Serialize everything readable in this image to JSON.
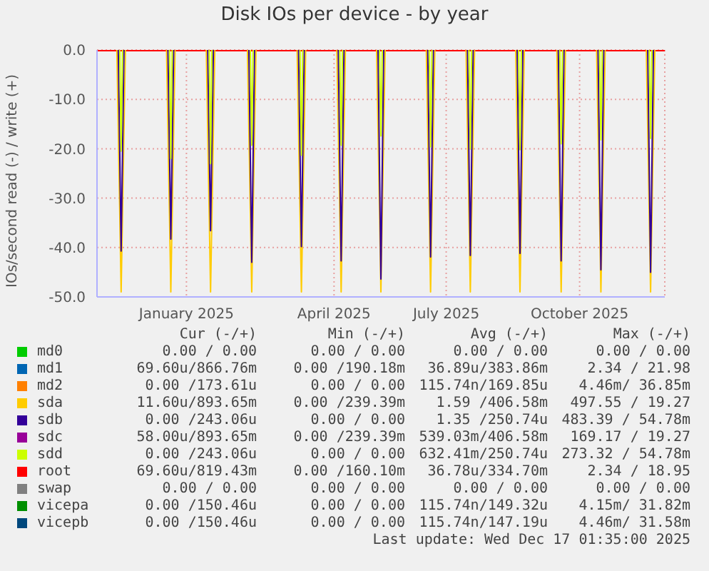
{
  "chart_data": {
    "type": "line",
    "title": "Disk IOs per device - by year",
    "ylabel": "IOs/second read (-) / write (+)",
    "x": [
      "2024-11-12",
      "2025-12-17"
    ],
    "series": [
      {
        "name": "md0",
        "color": "#00cc00",
        "values": [
          null,
          null
        ]
      },
      {
        "name": "md1",
        "color": "#0066b3",
        "values": [
          null,
          null
        ]
      },
      {
        "name": "md2",
        "color": "#ff8000",
        "values": [
          null,
          null
        ]
      },
      {
        "name": "sda",
        "color": "#ffcc00",
        "x": [
          "2024-11-26",
          "2024-11-29",
          "2024-12-02",
          "2024-12-03",
          "2024-12-31",
          "2025-01-03",
          "2025-01-06",
          "2025-01-07",
          "2025-01-28",
          "2025-01-31",
          "2025-02-03",
          "2025-02-04",
          "2025-02-26",
          "2025-03-01",
          "2025-03-04",
          "2025-03-05",
          "2025-04-02",
          "2025-04-05",
          "2025-04-08",
          "2025-04-09",
          "2025-04-30",
          "2025-05-03",
          "2025-05-06",
          "2025-05-07",
          "2025-05-28",
          "2025-05-31",
          "2025-06-03",
          "2025-06-04",
          "2025-07-02",
          "2025-07-05",
          "2025-07-08",
          "2025-07-09",
          "2025-07-30",
          "2025-08-02",
          "2025-08-05",
          "2025-08-06",
          "2025-09-03",
          "2025-09-06",
          "2025-09-09",
          "2025-09-10",
          "2025-10-02",
          "2025-10-05",
          "2025-10-08",
          "2025-10-09",
          "2025-10-30",
          "2025-11-02",
          "2025-11-05",
          "2025-11-06",
          "2025-12-04",
          "2025-12-07",
          "2025-12-10"
        ],
        "values": [
          0,
          -49,
          0,
          null,
          0,
          -49,
          0,
          null,
          0,
          -49,
          0,
          null,
          0,
          -49,
          0,
          null,
          0,
          -49,
          0,
          null,
          0,
          -49,
          0,
          null,
          0,
          -49,
          0,
          null,
          0,
          -49,
          0,
          null,
          0,
          -49,
          0,
          null,
          0,
          -49,
          0,
          null,
          0,
          -49,
          0,
          null,
          0,
          -49,
          0,
          null,
          0,
          -49,
          0
        ]
      },
      {
        "name": "sdb",
        "color": "#330099",
        "x": [
          "2024-11-27",
          "2024-11-29",
          "2024-12-01",
          "2024-12-03",
          "2025-01-01",
          "2025-01-03",
          "2025-01-05",
          "2025-01-07",
          "2025-01-29",
          "2025-01-31",
          "2025-02-02",
          "2025-02-04",
          "2025-02-27",
          "2025-03-01",
          "2025-03-03",
          "2025-03-05",
          "2025-04-03",
          "2025-04-05",
          "2025-04-07",
          "2025-04-09",
          "2025-05-01",
          "2025-05-03",
          "2025-05-05",
          "2025-05-07",
          "2025-05-29",
          "2025-05-31",
          "2025-06-02",
          "2025-06-04",
          "2025-07-03",
          "2025-07-05",
          "2025-07-07",
          "2025-07-09",
          "2025-07-31",
          "2025-08-02",
          "2025-08-04",
          "2025-08-06",
          "2025-09-04",
          "2025-09-06",
          "2025-09-08",
          "2025-09-10",
          "2025-10-03",
          "2025-10-05",
          "2025-10-07",
          "2025-10-09",
          "2025-10-31",
          "2025-11-02",
          "2025-11-04",
          "2025-11-06",
          "2025-12-05",
          "2025-12-07",
          "2025-12-09"
        ],
        "values": [
          0,
          -40.7,
          0,
          null,
          0,
          -38.3,
          0,
          null,
          0,
          -36.6,
          0,
          null,
          0,
          -43,
          0,
          null,
          0,
          -39.8,
          0,
          null,
          0,
          -42.7,
          0,
          null,
          0,
          -46.4,
          0,
          null,
          0,
          -41.9,
          0,
          null,
          0,
          -41.6,
          0,
          null,
          0,
          -41.2,
          0,
          null,
          0,
          -42.7,
          0,
          null,
          0,
          -44.5,
          0,
          null,
          0,
          -45,
          0
        ]
      },
      {
        "name": "sdc",
        "color": "#990099",
        "values": [
          null,
          null
        ]
      },
      {
        "name": "sdd",
        "color": "#ccff00",
        "x": [
          "2024-11-28",
          "2024-11-29",
          "2024-11-30",
          "2024-12-03",
          "2025-01-02",
          "2025-01-03",
          "2025-01-04",
          "2025-01-07",
          "2025-01-30",
          "2025-01-31",
          "2025-02-01",
          "2025-02-04",
          "2025-02-28",
          "2025-03-01",
          "2025-03-02",
          "2025-03-05",
          "2025-04-04",
          "2025-04-05",
          "2025-04-06",
          "2025-04-09",
          "2025-05-02",
          "2025-05-03",
          "2025-05-04",
          "2025-05-07",
          "2025-05-30",
          "2025-05-31",
          "2025-06-01",
          "2025-06-04",
          "2025-07-04",
          "2025-07-05",
          "2025-07-06",
          "2025-07-09",
          "2025-08-01",
          "2025-08-02",
          "2025-08-03",
          "2025-08-06",
          "2025-09-05",
          "2025-09-06",
          "2025-09-07",
          "2025-09-10",
          "2025-10-04",
          "2025-10-05",
          "2025-10-06",
          "2025-10-09",
          "2025-11-01",
          "2025-11-02",
          "2025-11-03",
          "2025-11-06",
          "2025-12-06",
          "2025-12-07",
          "2025-12-08"
        ],
        "values": [
          0,
          -20.5,
          0,
          null,
          0,
          -22,
          0,
          null,
          0,
          -23,
          0,
          null,
          0,
          -19.3,
          0,
          null,
          0,
          -21.3,
          0,
          null,
          0,
          -19.3,
          0,
          null,
          0,
          -17.4,
          0,
          null,
          0,
          -19.6,
          0,
          null,
          0,
          -20,
          0,
          null,
          0,
          -20.2,
          0,
          null,
          0,
          -19,
          0,
          null,
          0,
          -18.2,
          0,
          null,
          0,
          -17.9,
          0
        ]
      },
      {
        "name": "root",
        "color": "#ff0000",
        "values": [
          0,
          0
        ]
      },
      {
        "name": "swap",
        "color": "#808080",
        "values": [
          null,
          null
        ]
      },
      {
        "name": "vicepa",
        "color": "#008f00",
        "values": [
          null,
          null
        ]
      },
      {
        "name": "vicepb",
        "color": "#00487d",
        "values": [
          null,
          null
        ]
      }
    ],
    "xlim": [
      "2024-11-12",
      "2025-12-17"
    ],
    "xticks": [
      {
        "value": "2025-01-14",
        "label": "January 2025"
      },
      {
        "value": "2025-04-28",
        "label": "April 2025"
      },
      {
        "value": "2025-07-16",
        "label": "July 2025"
      },
      {
        "value": "2025-10-18",
        "label": "October 2025"
      }
    ],
    "ylim": [
      -50,
      0
    ],
    "yticks": [
      {
        "value": -50,
        "label": "-50.0"
      },
      {
        "value": -40,
        "label": "-40.0"
      },
      {
        "value": -30,
        "label": "-30.0"
      },
      {
        "value": -20,
        "label": "-20.0"
      },
      {
        "value": -10,
        "label": "-10.0"
      },
      {
        "value": 0,
        "label": "0.0"
      }
    ],
    "grid": true,
    "legend": "bottom",
    "annotations": [
      "Cur (-/+)",
      "Min (-/+)",
      "Avg (-/+)",
      "Max (-/+)",
      "0.00 / 0.00",
      "0.00 / 0.00",
      "0.00 / 0.00",
      "0.00 / 0.00",
      "69.60u/866.76m",
      "0.00 /190.18m",
      "36.89u/383.86m",
      "2.34 / 21.98",
      "0.00 /173.61u",
      "0.00 / 0.00",
      "115.74n/169.85u",
      "4.46m/ 36.85m",
      "11.60u/893.65m",
      "0.00 /239.39m",
      "1.59 /406.58m",
      "497.55 / 19.27",
      "0.00 /243.06u",
      "0.00 / 0.00",
      "1.35 /250.74u",
      "483.39 / 54.78m",
      "58.00u/893.65m",
      "0.00 /239.39m",
      "539.03m/406.58m",
      "169.17 / 19.27",
      "0.00 /243.06u",
      "0.00 / 0.00",
      "632.41m/250.74u",
      "273.32 / 54.78m",
      "69.60u/819.43m",
      "0.00 /160.10m",
      "36.78u/334.70m",
      "2.34 / 18.95",
      "0.00 / 0.00",
      "0.00 / 0.00",
      "0.00 / 0.00",
      "0.00 / 0.00",
      "0.00 /150.46u",
      "0.00 / 0.00",
      "115.74n/149.32u",
      "4.15m/ 31.82m",
      "0.00 /150.46u",
      "0.00 / 0.00",
      "115.74n/147.19u",
      "4.46m/ 31.58m",
      "Last update: Wed Dec 17 01:35:00 2025"
    ]
  }
}
